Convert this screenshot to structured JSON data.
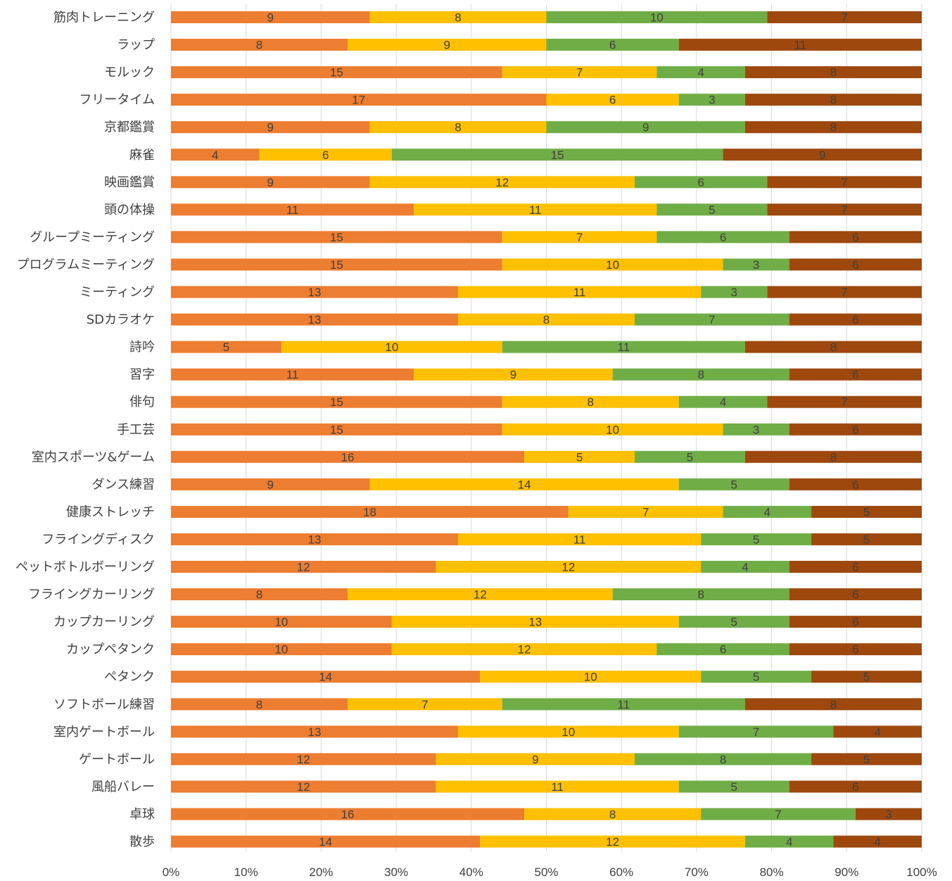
{
  "chart_data": {
    "type": "bar",
    "orientation": "horizontal",
    "stacked": "percent",
    "grid": true,
    "legend": "none",
    "xlim": [
      0,
      100
    ],
    "x_ticks": [
      "0%",
      "10%",
      "20%",
      "30%",
      "40%",
      "50%",
      "60%",
      "70%",
      "80%",
      "90%",
      "100%"
    ],
    "colors": [
      "#ED7D31",
      "#FFC000",
      "#70AD47",
      "#9E480E"
    ],
    "categories": [
      "筋肉トレーニング",
      "ラップ",
      "モルック",
      "フリータイム",
      "京都鑑賞",
      "麻雀",
      "映画鑑賞",
      "頭の体操",
      "グループミーティング",
      "プログラムミーティング",
      "ミーティング",
      "SDカラオケ",
      "詩吟",
      "習字",
      "俳句",
      "手工芸",
      "室内スポーツ&ゲーム",
      "ダンス練習",
      "健康ストレッチ",
      "フライングディスク",
      "ペットボトルボーリング",
      "フライングカーリング",
      "カップカーリング",
      "カップペタンク",
      "ペタンク",
      "ソフトボール練習",
      "室内ゲートボール",
      "ゲートボール",
      "風船バレー",
      "卓球",
      "散歩"
    ],
    "series": [
      {
        "color": "#ED7D31",
        "values": [
          9,
          8,
          15,
          17,
          9,
          4,
          9,
          11,
          15,
          15,
          13,
          13,
          5,
          11,
          15,
          15,
          16,
          9,
          18,
          13,
          12,
          8,
          10,
          10,
          14,
          8,
          13,
          12,
          12,
          16,
          14
        ]
      },
      {
        "color": "#FFC000",
        "values": [
          8,
          9,
          7,
          6,
          8,
          6,
          12,
          11,
          7,
          10,
          11,
          8,
          10,
          9,
          8,
          10,
          5,
          14,
          7,
          11,
          12,
          12,
          13,
          12,
          10,
          7,
          10,
          9,
          11,
          8,
          12
        ]
      },
      {
        "color": "#70AD47",
        "values": [
          10,
          6,
          4,
          3,
          9,
          15,
          6,
          5,
          6,
          3,
          3,
          7,
          11,
          8,
          4,
          3,
          5,
          5,
          4,
          5,
          4,
          8,
          5,
          6,
          5,
          11,
          7,
          8,
          5,
          7,
          4
        ]
      },
      {
        "color": "#9E480E",
        "values": [
          7,
          11,
          8,
          8,
          8,
          9,
          7,
          7,
          6,
          6,
          7,
          6,
          8,
          6,
          7,
          6,
          8,
          6,
          5,
          5,
          6,
          6,
          6,
          6,
          5,
          8,
          4,
          5,
          6,
          3,
          4
        ]
      }
    ]
  }
}
